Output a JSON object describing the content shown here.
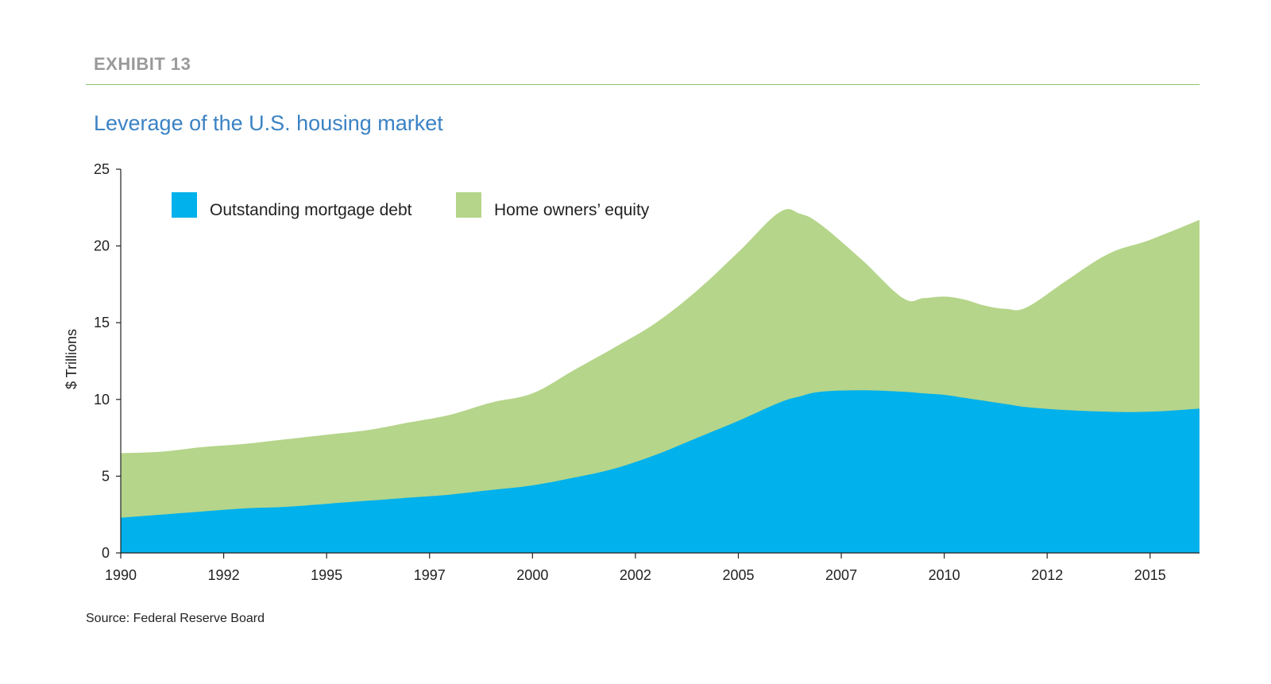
{
  "header": {
    "exhibit": "EXHIBIT 13"
  },
  "footer": {
    "source": "Source: Federal Reserve Board"
  },
  "colors": {
    "debt": "#00b1eb",
    "equity": "#b5d58a",
    "rule": "#8fc46a",
    "title": "#3b82c4"
  },
  "chart_data": {
    "type": "area",
    "stacked": true,
    "title": "Leverage of the U.S. housing market",
    "ylabel": "$ Trillions",
    "xlabel": "",
    "xlim": [
      1990,
      2016.2
    ],
    "ylim": [
      0,
      25
    ],
    "yticks": [
      0,
      5,
      10,
      15,
      20,
      25
    ],
    "xtick_values": [
      1990,
      1992.5,
      1995,
      1997.5,
      2000,
      2002.5,
      2005,
      2007.5,
      2010,
      2012.5,
      2015
    ],
    "xtick_labels": [
      "1990",
      "1992",
      "1995",
      "1997",
      "2000",
      "2002",
      "2005",
      "2007",
      "2010",
      "2012",
      "2015"
    ],
    "legend": {
      "placement": "top-left",
      "entries": [
        "Outstanding mortgage debt",
        "Home owners’ equity"
      ]
    },
    "grid": false,
    "x": [
      1990,
      1991,
      1992,
      1993,
      1994,
      1995,
      1996,
      1997,
      1998,
      1999,
      2000,
      2001,
      2002,
      2003,
      2004,
      2005,
      2006,
      2006.5,
      2007,
      2008,
      2009,
      2009.5,
      2010,
      2010.5,
      2011,
      2011.5,
      2012,
      2013,
      2014,
      2015,
      2016.2
    ],
    "series": [
      {
        "name": "Outstanding mortgage debt",
        "values": [
          2.3,
          2.5,
          2.7,
          2.9,
          3.0,
          3.2,
          3.4,
          3.6,
          3.8,
          4.1,
          4.4,
          4.9,
          5.5,
          6.4,
          7.5,
          8.6,
          9.8,
          10.2,
          10.5,
          10.6,
          10.5,
          10.4,
          10.3,
          10.1,
          9.9,
          9.7,
          9.5,
          9.3,
          9.2,
          9.2,
          9.4
        ]
      },
      {
        "name": "Home owners’ equity",
        "values": [
          4.2,
          4.1,
          4.2,
          4.2,
          4.4,
          4.5,
          4.6,
          4.9,
          5.2,
          5.7,
          6.0,
          7.0,
          7.9,
          8.6,
          9.6,
          11.0,
          12.4,
          11.9,
          10.9,
          8.5,
          6.1,
          6.2,
          6.4,
          6.4,
          6.2,
          6.2,
          6.5,
          8.5,
          10.3,
          11.2,
          12.3
        ]
      }
    ]
  }
}
